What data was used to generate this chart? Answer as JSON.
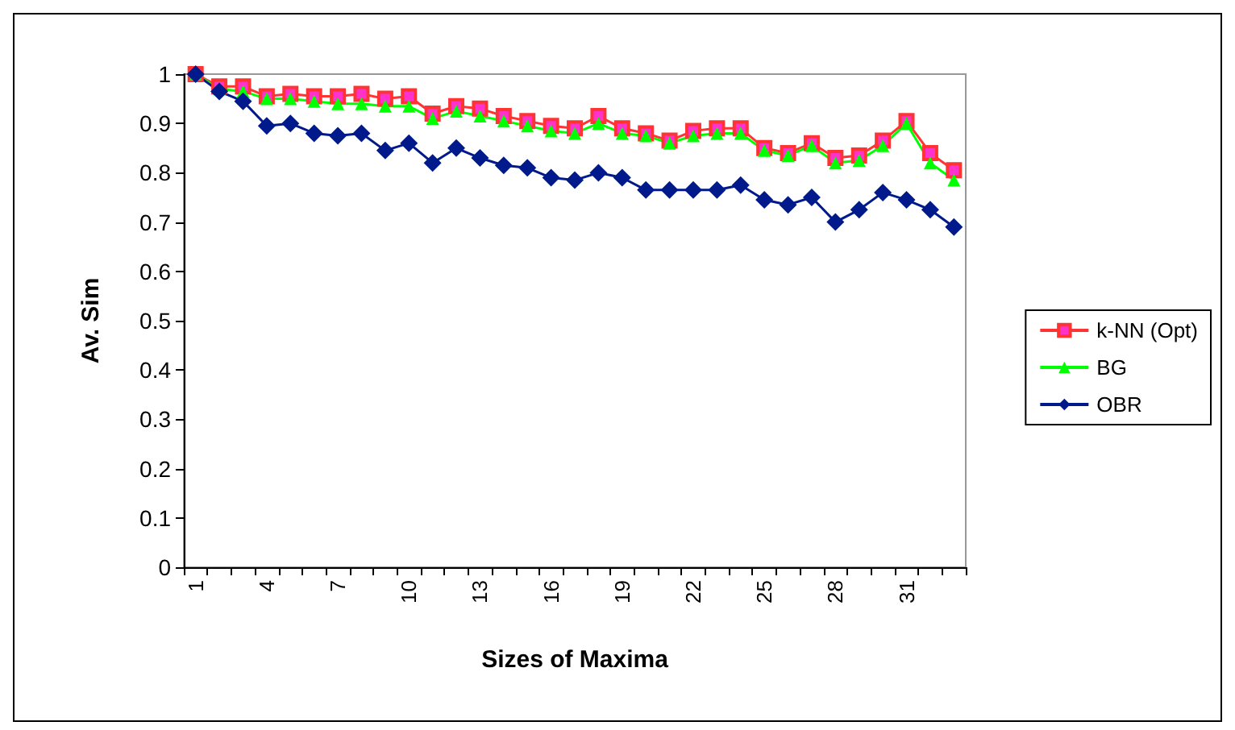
{
  "chart_data": {
    "type": "line",
    "xlabel": "Sizes of Maxima",
    "ylabel": "Av. Sim",
    "categories": [
      "1",
      null,
      null,
      "4",
      null,
      null,
      "7",
      null,
      null,
      "10",
      null,
      null,
      "13",
      null,
      null,
      "16",
      null,
      null,
      "19",
      null,
      null,
      "22",
      null,
      null,
      "25",
      null,
      null,
      "28",
      null,
      null,
      "31",
      null,
      null
    ],
    "ylim": [
      0,
      1
    ],
    "yticks": [
      0,
      0.1,
      0.2,
      0.3,
      0.4,
      0.5,
      0.6,
      0.7,
      0.8,
      0.9,
      1
    ],
    "grid": false,
    "legend": "right",
    "series": [
      {
        "name": "k-NN (Opt)",
        "color": "#ff3333",
        "marker": "square",
        "values": [
          1,
          0.975,
          0.975,
          0.955,
          0.96,
          0.955,
          0.955,
          0.96,
          0.95,
          0.955,
          0.92,
          0.935,
          0.93,
          0.915,
          0.905,
          0.895,
          0.89,
          0.915,
          0.89,
          0.88,
          0.865,
          0.885,
          0.89,
          0.89,
          0.85,
          0.84,
          0.86,
          0.83,
          0.835,
          0.865,
          0.905,
          0.84,
          0.805
        ]
      },
      {
        "name": "BG",
        "color": "#00ff00",
        "marker": "triangle",
        "values": [
          1,
          0.97,
          0.965,
          0.95,
          0.95,
          0.945,
          0.94,
          0.94,
          0.935,
          0.935,
          0.91,
          0.925,
          0.915,
          0.905,
          0.895,
          0.885,
          0.88,
          0.9,
          0.88,
          0.875,
          0.86,
          0.875,
          0.88,
          0.88,
          0.845,
          0.835,
          0.855,
          0.82,
          0.825,
          0.855,
          0.9,
          0.82,
          0.785
        ]
      },
      {
        "name": "OBR",
        "color": "#001a8c",
        "marker": "diamond",
        "values": [
          1,
          0.965,
          0.945,
          0.895,
          0.9,
          0.88,
          0.875,
          0.88,
          0.845,
          0.86,
          0.82,
          0.85,
          0.83,
          0.815,
          0.81,
          0.79,
          0.785,
          0.8,
          0.79,
          0.765,
          0.765,
          0.765,
          0.765,
          0.775,
          0.745,
          0.735,
          0.75,
          0.7,
          0.725,
          0.76,
          0.745,
          0.725,
          0.69
        ]
      }
    ]
  }
}
